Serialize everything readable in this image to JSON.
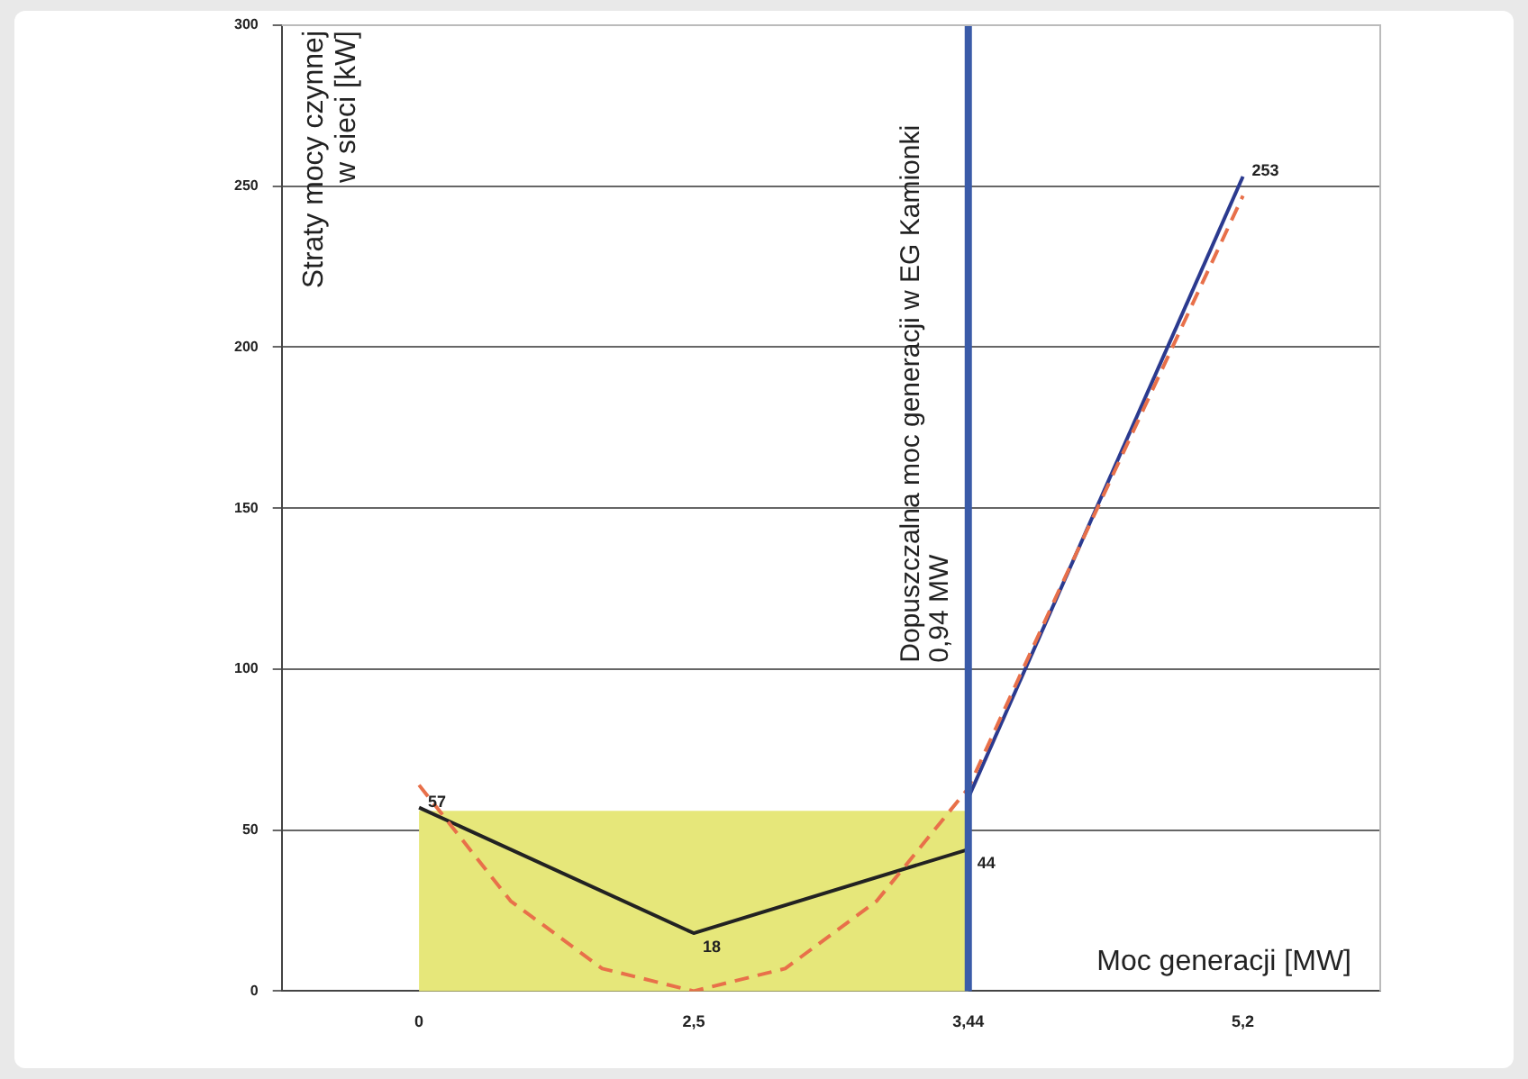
{
  "chart_data": {
    "type": "line",
    "xlabel": "Moc generacji [MW]",
    "ylabel": "Straty mocy czynnej\nw sieci [kW]",
    "categories": [
      null,
      "0",
      null,
      null,
      "2,5",
      null,
      null,
      "3,44",
      null,
      null,
      "5,2",
      null
    ],
    "series": [
      {
        "color": "#e8704a",
        "line_style": "dashed",
        "values": [
          null,
          64,
          28,
          7,
          0,
          7,
          28,
          63,
          125,
          186,
          247,
          null
        ]
      },
      {
        "color": "#222222",
        "values": [
          null,
          57,
          null,
          null,
          18,
          null,
          null,
          44,
          null,
          null,
          null,
          null
        ],
        "value_labels": [
          null,
          "57",
          null,
          null,
          "18",
          null,
          null,
          "44",
          null,
          null,
          null,
          null
        ]
      },
      {
        "color": "#2b3a8f",
        "values": [
          null,
          null,
          null,
          null,
          null,
          null,
          null,
          60,
          null,
          null,
          253,
          null
        ],
        "value_labels": [
          null,
          null,
          null,
          null,
          null,
          null,
          null,
          null,
          null,
          null,
          "253",
          null
        ]
      }
    ],
    "ylim": [
      0,
      300
    ],
    "yticks": [
      0,
      50,
      100,
      150,
      200,
      250,
      300
    ],
    "grid": "y",
    "legend": false,
    "marker": "none",
    "ref_lines": [
      {
        "axis": "x",
        "value": "3,44",
        "label": "Dopuszczalna moc generacji w EG Kamionki\n0,94 MW",
        "color": "#3a5ba8"
      }
    ],
    "bands": [
      {
        "axis": "y",
        "from": 0,
        "to": 56,
        "color": "#e6e77a"
      }
    ]
  }
}
